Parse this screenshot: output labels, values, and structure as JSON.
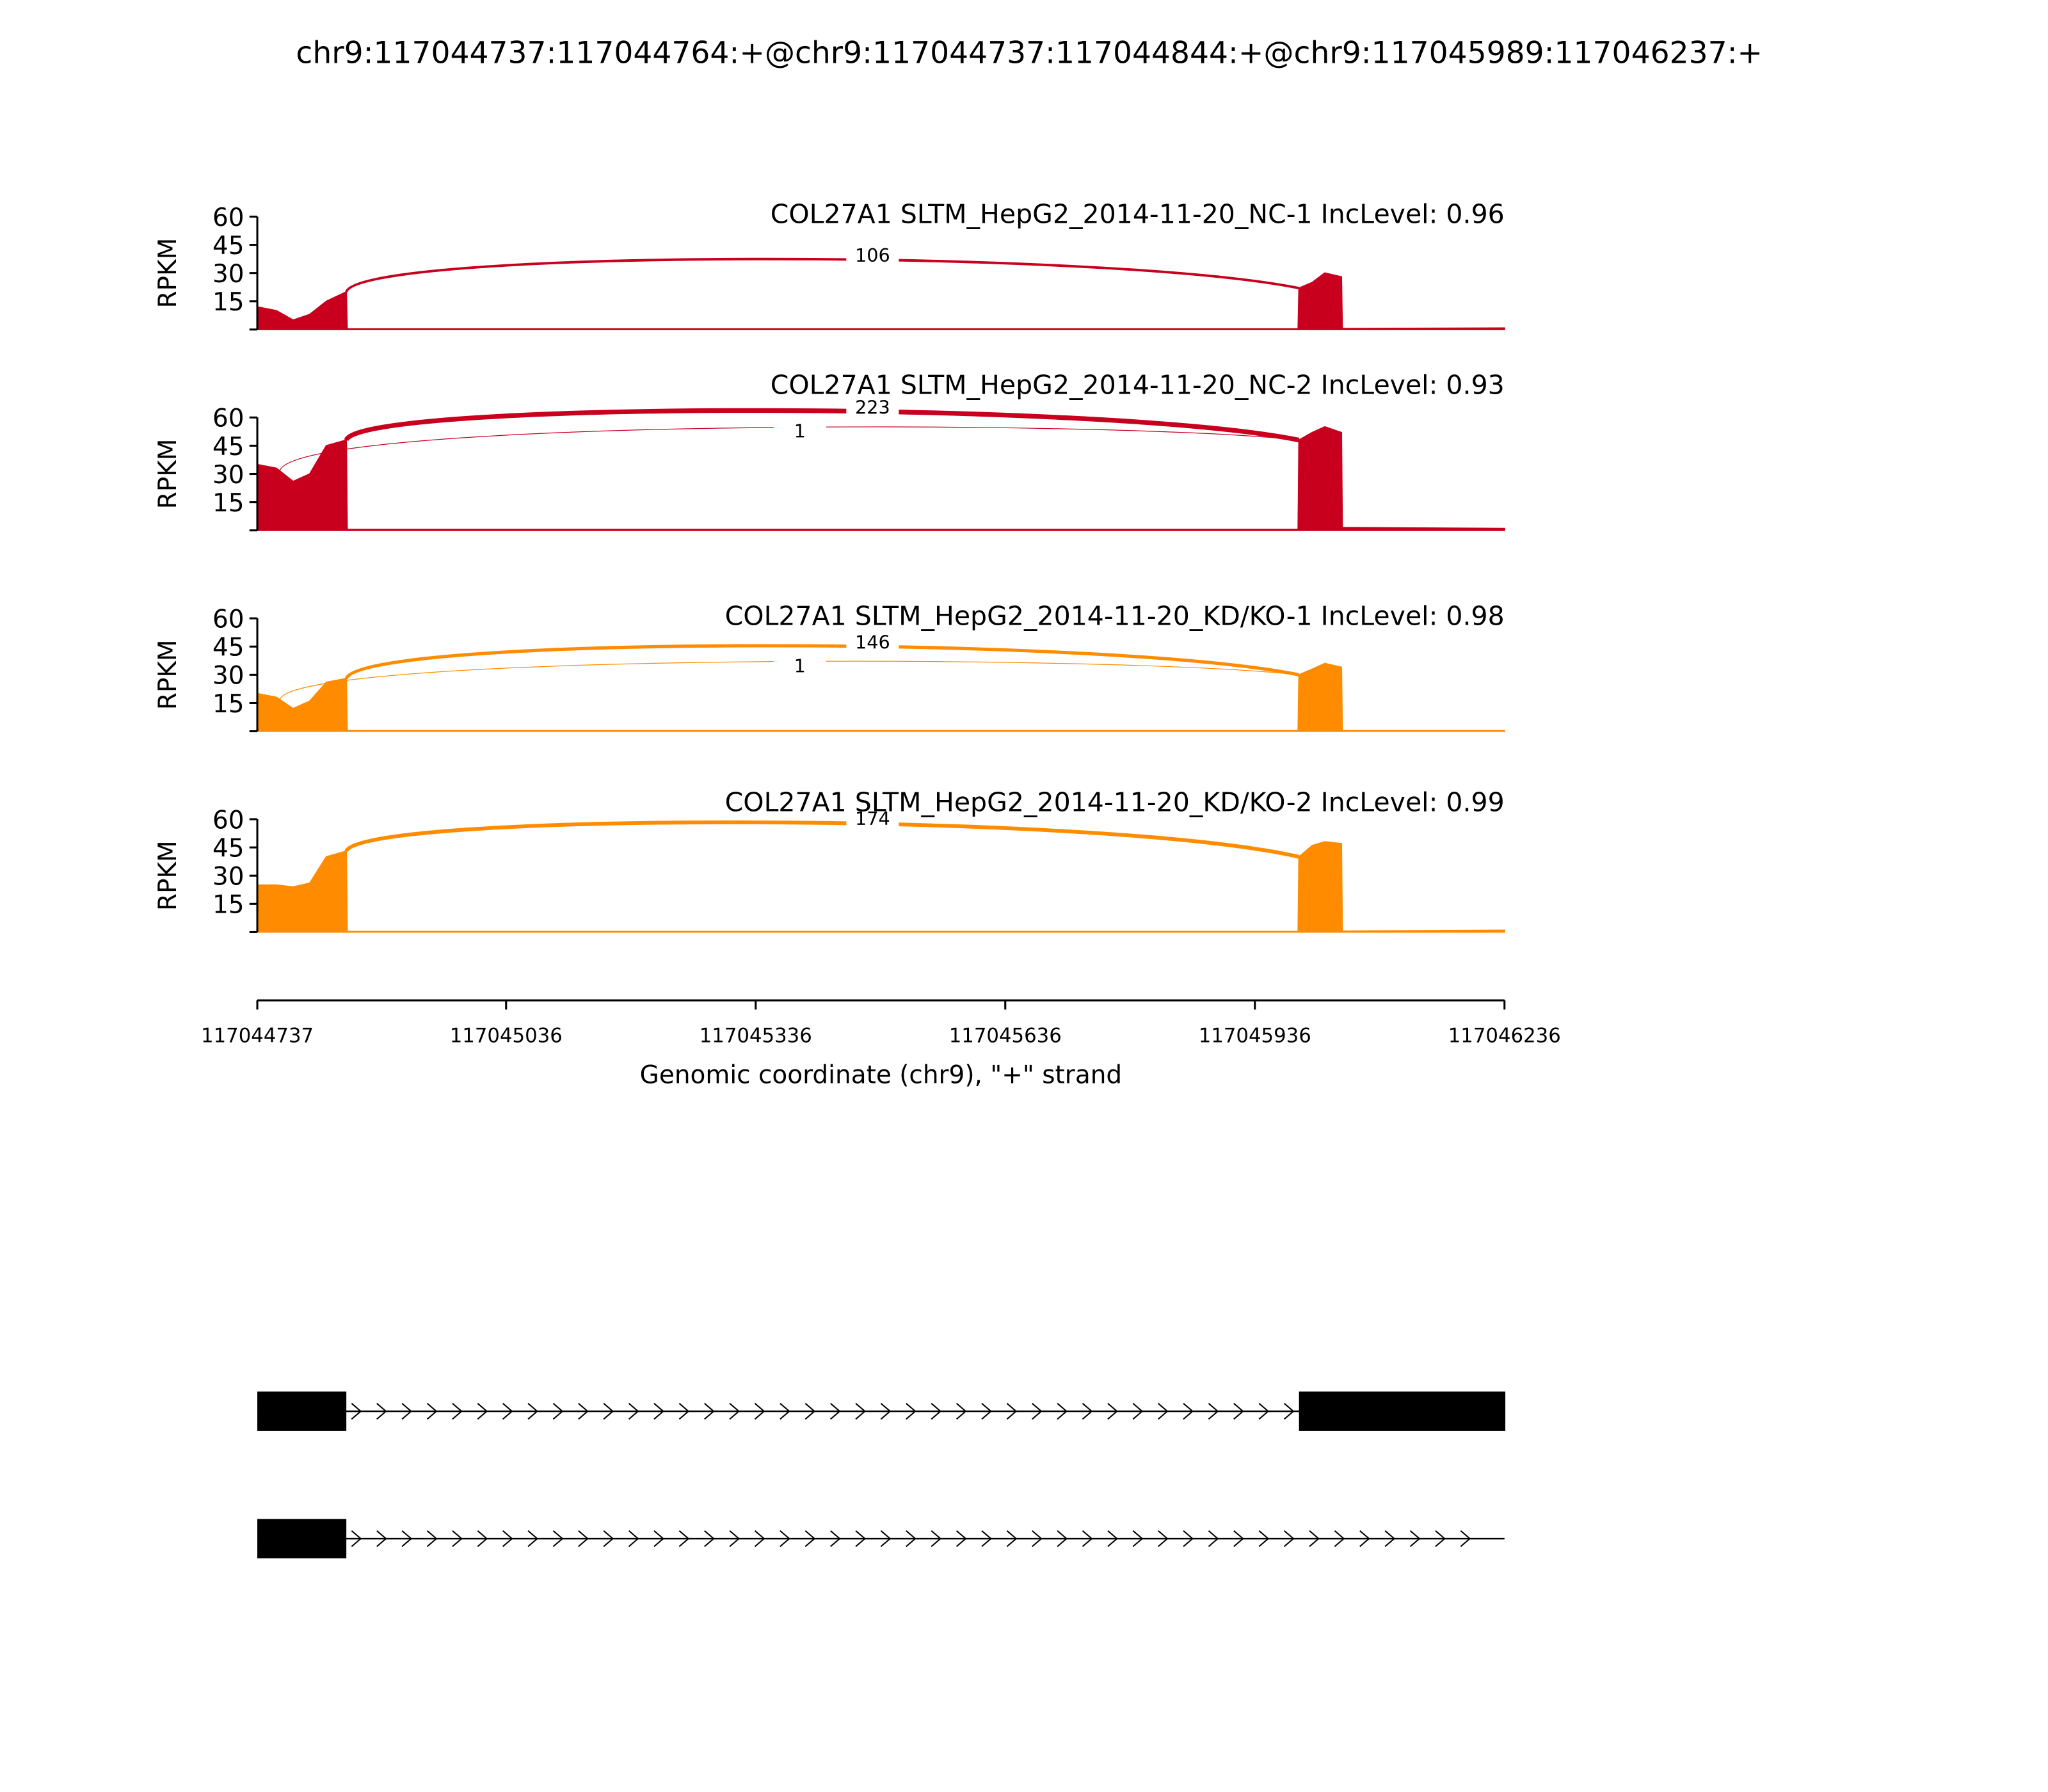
{
  "title": "chr9:117044737:117044764:+@chr9:117044737:117044844:+@chr9:117045989:117046237:+",
  "x_axis": {
    "xlim": [
      117044737,
      117046236
    ],
    "xticks": [
      117044737,
      117045036,
      117045336,
      117045636,
      117045936,
      117046236
    ],
    "xlabel": "Genomic coordinate (chr9), \"+\" strand"
  },
  "chart_data": [
    {
      "type": "area",
      "title": "COL27A1 SLTM_HepG2_2014-11-20_NC-1 IncLevel: 0.96",
      "color": "#c8001e",
      "ylabel": "RPKM",
      "ylim": [
        0,
        60
      ],
      "yticks": [
        15,
        30,
        45,
        60
      ],
      "x": [
        117044737,
        117044760,
        117044780,
        117044800,
        117044820,
        117044844,
        117044845,
        117045988,
        117045989,
        117046005,
        117046020,
        117046040,
        117046041,
        117046236
      ],
      "values": [
        12,
        10,
        5,
        8,
        15,
        20,
        0.3,
        0.3,
        22,
        25,
        30,
        28,
        0.5,
        0.8
      ],
      "junctions": [
        {
          "start": 117044844,
          "end": 117045989,
          "count": 106
        }
      ]
    },
    {
      "type": "area",
      "title": "COL27A1 SLTM_HepG2_2014-11-20_NC-2 IncLevel: 0.93",
      "color": "#c8001e",
      "ylabel": "RPKM",
      "ylim": [
        0,
        60
      ],
      "yticks": [
        15,
        30,
        45,
        60
      ],
      "x": [
        117044737,
        117044760,
        117044780,
        117044800,
        117044820,
        117044844,
        117044845,
        117045988,
        117045989,
        117046005,
        117046020,
        117046040,
        117046041,
        117046236
      ],
      "values": [
        35,
        33,
        26,
        30,
        45,
        48,
        0.5,
        0.5,
        48,
        52,
        55,
        52,
        1.5,
        1
      ],
      "junctions": [
        {
          "start": 117044844,
          "end": 117045989,
          "count": 223
        },
        {
          "start": 117044764,
          "end": 117045989,
          "count": 1
        }
      ]
    },
    {
      "type": "area",
      "title": "COL27A1 SLTM_HepG2_2014-11-20_KD/KO-1 IncLevel: 0.98",
      "color": "#ff8c00",
      "ylabel": "RPKM",
      "ylim": [
        0,
        60
      ],
      "yticks": [
        15,
        30,
        45,
        60
      ],
      "x": [
        117044737,
        117044760,
        117044780,
        117044800,
        117044820,
        117044844,
        117044845,
        117045988,
        117045989,
        117046005,
        117046020,
        117046040,
        117046041,
        117046236
      ],
      "values": [
        20,
        18,
        12,
        16,
        26,
        28,
        0.3,
        0.3,
        30,
        33,
        36,
        34,
        0.3,
        0.3
      ],
      "junctions": [
        {
          "start": 117044844,
          "end": 117045989,
          "count": 146
        },
        {
          "start": 117044764,
          "end": 117045989,
          "count": 1
        }
      ]
    },
    {
      "type": "area",
      "title": "COL27A1 SLTM_HepG2_2014-11-20_KD/KO-2 IncLevel: 0.99",
      "color": "#ff8c00",
      "ylabel": "RPKM",
      "ylim": [
        0,
        60
      ],
      "yticks": [
        15,
        30,
        45,
        60
      ],
      "x": [
        117044737,
        117044760,
        117044780,
        117044800,
        117044820,
        117044844,
        117044845,
        117045988,
        117045989,
        117046005,
        117046020,
        117046040,
        117046041,
        117046236
      ],
      "values": [
        25,
        25,
        24,
        26,
        40,
        43,
        0.3,
        0.3,
        40,
        46,
        48,
        47,
        0.5,
        1
      ],
      "junctions": [
        {
          "start": 117044844,
          "end": 117045989,
          "count": 174
        }
      ]
    }
  ],
  "gene_model": {
    "transcripts": [
      {
        "exons": [
          [
            117044737,
            117044844
          ],
          [
            117045989,
            117046237
          ]
        ]
      },
      {
        "exons": [
          [
            117044737,
            117044844
          ]
        ]
      }
    ]
  }
}
